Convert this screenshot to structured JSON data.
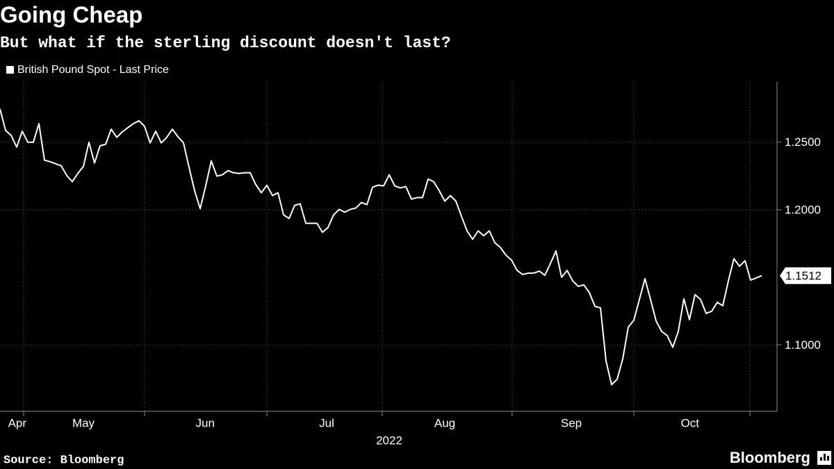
{
  "chart_data": {
    "type": "line",
    "title": "Going Cheap",
    "subtitle": "But what if the sterling discount doesn't last?",
    "x_label": "2022",
    "source": "Source: Bloomberg",
    "brand": "Bloomberg",
    "legend": "top-left",
    "grid": true,
    "x": [
      0,
      1,
      2,
      3,
      4,
      5,
      6,
      7,
      8,
      9,
      10,
      11,
      12,
      13,
      14,
      15,
      16,
      17,
      18,
      19,
      20,
      21,
      22,
      23,
      24,
      25,
      26,
      27,
      28,
      29,
      30,
      31,
      32,
      33,
      34,
      35,
      36,
      37,
      38,
      39,
      40,
      41,
      42,
      43,
      44,
      45,
      46,
      47,
      48,
      49,
      50,
      51,
      52,
      53,
      54,
      55,
      56,
      57,
      58,
      59,
      60,
      61,
      62,
      63,
      64,
      65,
      66,
      67,
      68,
      69,
      70,
      71,
      72,
      73,
      74,
      75,
      76,
      77,
      78,
      79,
      80,
      81,
      82,
      83,
      84,
      85,
      86,
      87,
      88,
      89,
      90,
      91,
      92,
      93,
      94,
      95,
      96,
      97,
      98,
      99,
      100,
      101,
      102,
      103,
      104,
      105,
      106,
      107,
      108,
      109,
      110,
      111,
      112,
      113,
      114,
      115,
      116,
      117,
      118,
      119,
      120,
      121,
      122,
      123,
      124,
      125,
      126,
      127,
      128,
      129,
      130,
      131,
      132,
      133,
      134,
      135,
      136,
      137
    ],
    "xlim": [
      0,
      139.75
    ],
    "xticks": [
      {
        "value": 3.1,
        "label": "Apr"
      },
      {
        "value": 15,
        "label": "May"
      },
      {
        "value": 36.9,
        "label": "Jun"
      },
      {
        "value": 58.75,
        "label": "Jul"
      },
      {
        "value": 80,
        "label": "Aug"
      },
      {
        "value": 102.75,
        "label": "Sep"
      },
      {
        "value": 124.1,
        "label": "Oct"
      }
    ],
    "xgrid": [
      4.25,
      26,
      48,
      68.75,
      92.1,
      114,
      134.9
    ],
    "ylim": [
      1.0508,
      1.2946
    ],
    "yticks": [
      {
        "value": 1.1,
        "label": "1.1000"
      },
      {
        "value": 1.2,
        "label": "1.2000"
      },
      {
        "value": 1.25,
        "label": "1.2500"
      }
    ],
    "series": [
      {
        "name": "British Pound Spot - Last Price",
        "color": "#ffffff",
        "values": [
          1.2746,
          1.2587,
          1.2551,
          1.2464,
          1.2582,
          1.25,
          1.25,
          1.2638,
          1.2367,
          1.2356,
          1.2341,
          1.2326,
          1.2254,
          1.2208,
          1.2269,
          1.2321,
          1.25,
          1.2346,
          1.2474,
          1.2485,
          1.2597,
          1.2536,
          1.2577,
          1.2608,
          1.2638,
          1.2659,
          1.2618,
          1.2495,
          1.2582,
          1.2495,
          1.2536,
          1.2597,
          1.2541,
          1.2495,
          1.2315,
          1.2141,
          1.2008,
          1.2177,
          1.2362,
          1.2249,
          1.2259,
          1.229,
          1.2274,
          1.2269,
          1.2274,
          1.2274,
          1.2187,
          1.2126,
          1.2182,
          1.2105,
          1.2126,
          1.1962,
          1.1936,
          1.2033,
          1.2044,
          1.19,
          1.19,
          1.19,
          1.1833,
          1.1869,
          1.1962,
          1.2003,
          1.1982,
          1.2003,
          1.2013,
          1.2054,
          1.2038,
          1.2167,
          1.2182,
          1.2177,
          1.2259,
          1.2177,
          1.2162,
          1.2172,
          1.2079,
          1.209,
          1.209,
          1.2228,
          1.2208,
          1.2141,
          1.2064,
          1.2105,
          1.2064,
          1.1951,
          1.1844,
          1.1782,
          1.1844,
          1.1808,
          1.1844,
          1.1756,
          1.1721,
          1.1664,
          1.1628,
          1.1551,
          1.1521,
          1.1531,
          1.1531,
          1.1546,
          1.1515,
          1.1603,
          1.1695,
          1.15,
          1.1551,
          1.1474,
          1.1433,
          1.1444,
          1.1387,
          1.1285,
          1.1274,
          1.088,
          1.0705,
          1.0746,
          1.0895,
          1.1131,
          1.1182,
          1.1336,
          1.149,
          1.1336,
          1.1177,
          1.11,
          1.1069,
          1.0982,
          1.11,
          1.1341,
          1.1187,
          1.1372,
          1.1336,
          1.1233,
          1.1249,
          1.1315,
          1.129,
          1.1474,
          1.1638,
          1.1582,
          1.1623,
          1.1479,
          1.1495,
          1.1512
        ]
      }
    ]
  }
}
